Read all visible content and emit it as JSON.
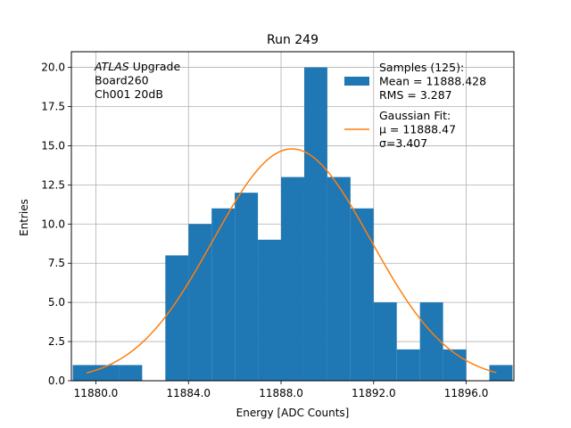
{
  "chart_data": {
    "type": "bar",
    "title": "Run 249",
    "xlabel": "Energy [ADC Counts]",
    "ylabel": "Entries",
    "xlim": [
      11878.94,
      11898.06
    ],
    "ylim": [
      0,
      21
    ],
    "grid": true,
    "x_ticks": [
      {
        "value": 11880,
        "label": "11880.0"
      },
      {
        "value": 11884,
        "label": "11884.0"
      },
      {
        "value": 11888,
        "label": "11888.0"
      },
      {
        "value": 11892,
        "label": "11892.0"
      },
      {
        "value": 11896,
        "label": "11896.0"
      }
    ],
    "y_ticks": [
      {
        "value": 0,
        "label": "0.0"
      },
      {
        "value": 2.5,
        "label": "2.5"
      },
      {
        "value": 5,
        "label": "5.0"
      },
      {
        "value": 7.5,
        "label": "7.5"
      },
      {
        "value": 10,
        "label": "10.0"
      },
      {
        "value": 12.5,
        "label": "12.5"
      },
      {
        "value": 15,
        "label": "15.0"
      },
      {
        "value": 17.5,
        "label": "17.5"
      },
      {
        "value": 20,
        "label": "20.0"
      }
    ],
    "histogram": {
      "bin_edges": [
        11879.0,
        11880.0,
        11881.0,
        11882.0,
        11883.0,
        11884.0,
        11885.0,
        11886.0,
        11887.0,
        11888.0,
        11889.0,
        11890.0,
        11891.0,
        11892.0,
        11893.0,
        11894.0,
        11895.0,
        11896.0,
        11897.0,
        11898.0
      ],
      "counts": [
        1,
        1,
        1,
        0,
        8,
        10,
        11,
        12,
        9,
        13,
        20,
        13,
        11,
        5,
        2,
        5,
        2,
        0,
        1
      ],
      "color": "#1f77b4"
    },
    "fit": {
      "mu": 11888.47,
      "sigma": 3.407,
      "amplitude": 14.8,
      "x_range": [
        11879.6,
        11897.3
      ],
      "color": "#ff7f0e"
    },
    "annotation_lines": [
      {
        "italic": "ATLAS",
        "text": " Upgrade"
      },
      {
        "italic": "",
        "text": " Board260"
      },
      {
        "italic": "",
        "text": " Ch001 20dB"
      }
    ],
    "legend": {
      "placement": "top-right",
      "entries": [
        {
          "type": "patch",
          "color": "#1f77b4",
          "lines": [
            "Samples (125):",
            " Mean = 11888.428",
            " RMS = 3.287"
          ]
        },
        {
          "type": "line",
          "color": "#ff7f0e",
          "lines": [
            "Gaussian Fit:",
            " μ = 11888.47",
            " σ=3.407"
          ]
        }
      ]
    }
  }
}
